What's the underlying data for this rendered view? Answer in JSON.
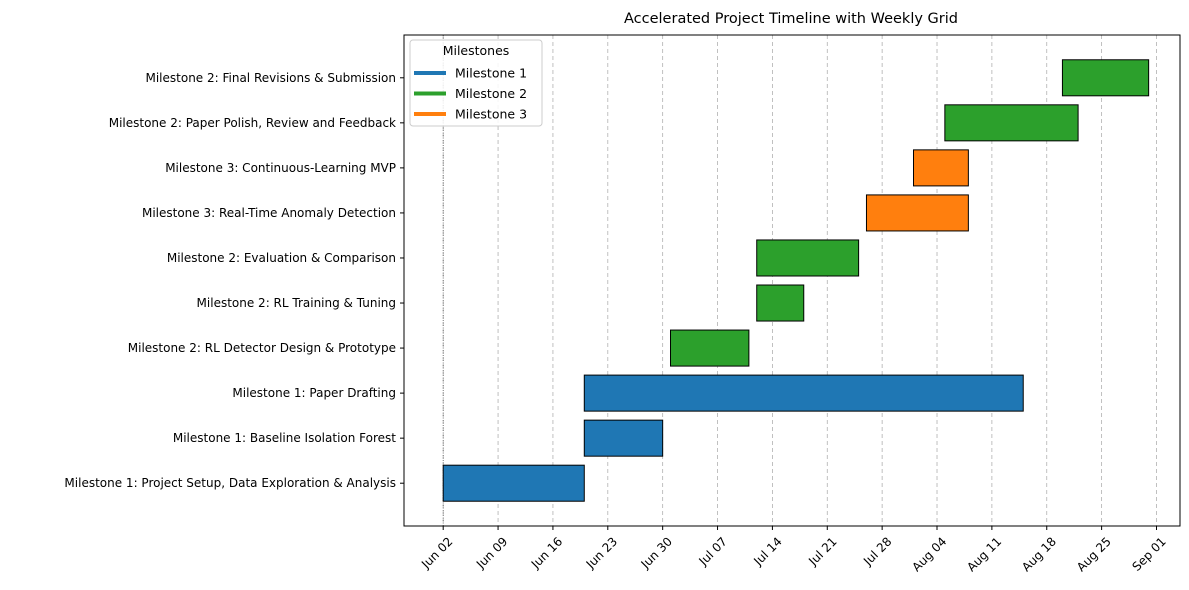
{
  "chart_data": {
    "type": "gantt",
    "title": "Accelerated Project Timeline with Weekly Grid",
    "xlabel": "",
    "ylabel": "",
    "x_start": "2025-06-02",
    "x_range": [
      "2025-05-28",
      "2025-09-04"
    ],
    "x_ticks": [
      "Jun 02",
      "Jun 09",
      "Jun 16",
      "Jun 23",
      "Jun 30",
      "Jul 07",
      "Jul 14",
      "Jul 21",
      "Jul 28",
      "Aug 04",
      "Aug 11",
      "Aug 18",
      "Aug 25",
      "Sep 01"
    ],
    "grid": "vertical-dashed",
    "legend": {
      "title": "Milestones",
      "position": "top-left",
      "entries": [
        {
          "label": "Milestone 1",
          "color": "#1f77b4"
        },
        {
          "label": "Milestone 2",
          "color": "#2ca02c"
        },
        {
          "label": "Milestone 3",
          "color": "#ff7f0e"
        }
      ]
    },
    "tasks": [
      {
        "label": "Milestone 1: Project Setup, Data Exploration & Analysis",
        "milestone": "Milestone 1",
        "start": "2025-06-02",
        "end": "2025-06-20"
      },
      {
        "label": "Milestone 1: Baseline Isolation Forest",
        "milestone": "Milestone 1",
        "start": "2025-06-20",
        "end": "2025-06-30"
      },
      {
        "label": "Milestone 1: Paper Drafting",
        "milestone": "Milestone 1",
        "start": "2025-06-20",
        "end": "2025-08-15"
      },
      {
        "label": "Milestone 2: RL Detector Design & Prototype",
        "milestone": "Milestone 2",
        "start": "2025-07-01",
        "end": "2025-07-11"
      },
      {
        "label": "Milestone 2: RL Training & Tuning",
        "milestone": "Milestone 2",
        "start": "2025-07-12",
        "end": "2025-07-18"
      },
      {
        "label": "Milestone 2: Evaluation & Comparison",
        "milestone": "Milestone 2",
        "start": "2025-07-12",
        "end": "2025-07-25"
      },
      {
        "label": "Milestone 3: Real-Time Anomaly Detection",
        "milestone": "Milestone 3",
        "start": "2025-07-26",
        "end": "2025-08-08"
      },
      {
        "label": "Milestone 3: Continuous-Learning MVP",
        "milestone": "Milestone 3",
        "start": "2025-08-01",
        "end": "2025-08-08"
      },
      {
        "label": "Milestone 2: Paper Polish, Review and Feedback",
        "milestone": "Milestone 2",
        "start": "2025-08-05",
        "end": "2025-08-22"
      },
      {
        "label": "Milestone 2: Final Revisions & Submission",
        "milestone": "Milestone 2",
        "start": "2025-08-20",
        "end": "2025-08-31"
      }
    ]
  }
}
